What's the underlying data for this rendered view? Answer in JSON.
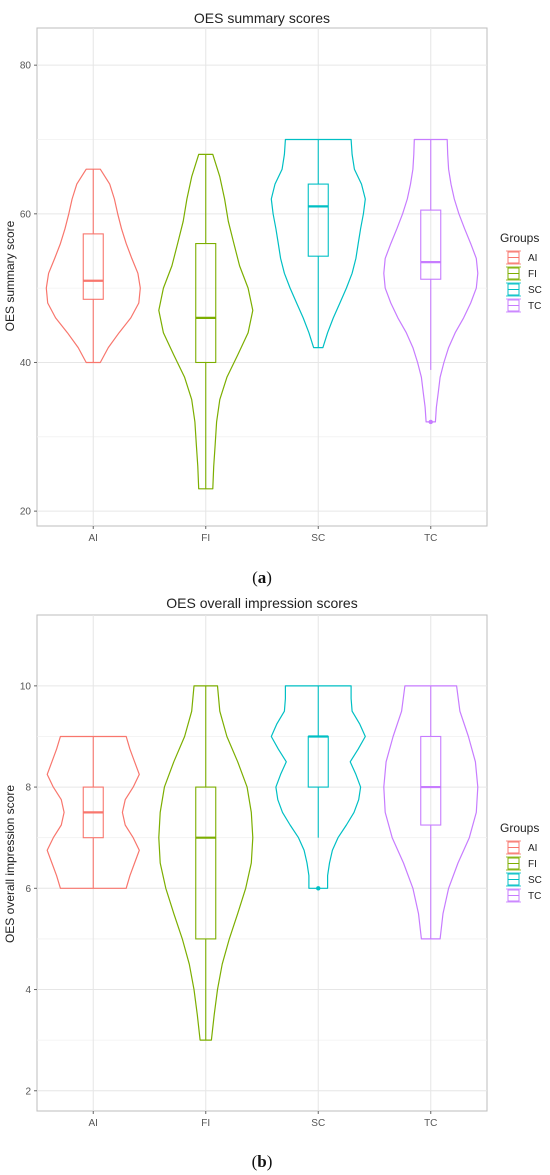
{
  "chart_data": [
    {
      "type": "violin",
      "title": "OES summary scores",
      "xlabel": "",
      "ylabel": "OES summary score",
      "ylim": [
        18,
        85
      ],
      "yticks": [
        20,
        40,
        60,
        80
      ],
      "categories": [
        "AI",
        "FI",
        "SC",
        "TC"
      ],
      "legend": {
        "title": "Groups",
        "position": "right",
        "entries": [
          "AI",
          "FI",
          "SC",
          "TC"
        ]
      },
      "grid": true,
      "caption": {
        "open": "(",
        "letter": "a",
        "close": ")"
      },
      "series": [
        {
          "name": "AI",
          "color": "#F8766D",
          "min": 40,
          "q1": 48.5,
          "median": 51,
          "q3": 57.3,
          "max": 66,
          "outliers": [],
          "density": [
            [
              40,
              0.15
            ],
            [
              42,
              0.32
            ],
            [
              44,
              0.55
            ],
            [
              46,
              0.8
            ],
            [
              48,
              0.97
            ],
            [
              50,
              1.0
            ],
            [
              52,
              0.95
            ],
            [
              54,
              0.82
            ],
            [
              56,
              0.7
            ],
            [
              58,
              0.6
            ],
            [
              60,
              0.52
            ],
            [
              62,
              0.45
            ],
            [
              64,
              0.35
            ],
            [
              66,
              0.15
            ]
          ]
        },
        {
          "name": "FI",
          "color": "#7CAE00",
          "min": 23,
          "q1": 40,
          "median": 46,
          "q3": 56,
          "max": 68,
          "outliers": [],
          "density": [
            [
              23,
              0.15
            ],
            [
              26,
              0.17
            ],
            [
              29,
              0.2
            ],
            [
              32,
              0.23
            ],
            [
              35,
              0.3
            ],
            [
              38,
              0.45
            ],
            [
              41,
              0.68
            ],
            [
              44,
              0.9
            ],
            [
              47,
              1.0
            ],
            [
              50,
              0.9
            ],
            [
              53,
              0.72
            ],
            [
              56,
              0.6
            ],
            [
              59,
              0.48
            ],
            [
              62,
              0.4
            ],
            [
              65,
              0.3
            ],
            [
              68,
              0.15
            ]
          ]
        },
        {
          "name": "SC",
          "color": "#00BFC4",
          "min": 42,
          "q1": 54.3,
          "median": 61,
          "q3": 64,
          "max": 70,
          "outliers": [],
          "density": [
            [
              42,
              0.1
            ],
            [
              44,
              0.2
            ],
            [
              46,
              0.32
            ],
            [
              48,
              0.46
            ],
            [
              50,
              0.6
            ],
            [
              52,
              0.72
            ],
            [
              54,
              0.8
            ],
            [
              56,
              0.85
            ],
            [
              58,
              0.9
            ],
            [
              60,
              0.96
            ],
            [
              62,
              1.0
            ],
            [
              64,
              0.92
            ],
            [
              66,
              0.77
            ],
            [
              68,
              0.72
            ],
            [
              70,
              0.7
            ]
          ]
        },
        {
          "name": "TC",
          "color": "#C77CFF",
          "min": 39,
          "q1": 51.2,
          "median": 53.5,
          "q3": 60.5,
          "max": 70,
          "outliers": [
            32
          ],
          "density": [
            [
              32,
              0.1
            ],
            [
              34,
              0.12
            ],
            [
              36,
              0.16
            ],
            [
              38,
              0.2
            ],
            [
              40,
              0.28
            ],
            [
              42,
              0.38
            ],
            [
              44,
              0.52
            ],
            [
              46,
              0.7
            ],
            [
              48,
              0.85
            ],
            [
              50,
              0.97
            ],
            [
              52,
              1.0
            ],
            [
              54,
              0.97
            ],
            [
              56,
              0.85
            ],
            [
              58,
              0.72
            ],
            [
              60,
              0.6
            ],
            [
              62,
              0.5
            ],
            [
              64,
              0.43
            ],
            [
              66,
              0.38
            ],
            [
              68,
              0.36
            ],
            [
              70,
              0.35
            ]
          ]
        }
      ]
    },
    {
      "type": "violin",
      "title": "OES overall impression scores",
      "xlabel": "",
      "ylabel": "OES overall impression score",
      "ylim": [
        1.6,
        11.4
      ],
      "yticks": [
        2,
        4,
        6,
        8,
        10
      ],
      "categories": [
        "AI",
        "FI",
        "SC",
        "TC"
      ],
      "legend": {
        "title": "Groups",
        "position": "right",
        "entries": [
          "AI",
          "FI",
          "SC",
          "TC"
        ]
      },
      "grid": true,
      "caption": {
        "open": "(",
        "letter": "b",
        "close": ")"
      },
      "series": [
        {
          "name": "AI",
          "color": "#F8766D",
          "min": 6,
          "q1": 7,
          "median": 7.5,
          "q3": 8,
          "max": 9,
          "outliers": [],
          "density": [
            [
              6,
              0.7
            ],
            [
              6.25,
              0.78
            ],
            [
              6.5,
              0.88
            ],
            [
              6.75,
              0.98
            ],
            [
              7,
              0.85
            ],
            [
              7.25,
              0.68
            ],
            [
              7.5,
              0.62
            ],
            [
              7.75,
              0.68
            ],
            [
              8,
              0.85
            ],
            [
              8.25,
              0.98
            ],
            [
              8.5,
              0.88
            ],
            [
              8.75,
              0.78
            ],
            [
              9,
              0.7
            ]
          ]
        },
        {
          "name": "FI",
          "color": "#7CAE00",
          "min": 3,
          "q1": 5,
          "median": 7,
          "q3": 8,
          "max": 10,
          "outliers": [],
          "density": [
            [
              3,
              0.12
            ],
            [
              3.5,
              0.18
            ],
            [
              4,
              0.25
            ],
            [
              4.5,
              0.35
            ],
            [
              5,
              0.5
            ],
            [
              5.5,
              0.68
            ],
            [
              6,
              0.85
            ],
            [
              6.5,
              0.97
            ],
            [
              7,
              1.0
            ],
            [
              7.5,
              0.97
            ],
            [
              8,
              0.88
            ],
            [
              8.5,
              0.68
            ],
            [
              9,
              0.45
            ],
            [
              9.5,
              0.3
            ],
            [
              10,
              0.25
            ]
          ]
        },
        {
          "name": "SC",
          "color": "#00BFC4",
          "min": 7,
          "q1": 8,
          "median": 9,
          "q3": 9,
          "max": 10,
          "outliers": [
            6
          ],
          "density": [
            [
              6,
              0.2
            ],
            [
              6.25,
              0.2
            ],
            [
              6.5,
              0.24
            ],
            [
              6.75,
              0.3
            ],
            [
              7,
              0.42
            ],
            [
              7.25,
              0.6
            ],
            [
              7.5,
              0.76
            ],
            [
              7.75,
              0.86
            ],
            [
              8,
              0.9
            ],
            [
              8.25,
              0.8
            ],
            [
              8.5,
              0.68
            ],
            [
              8.75,
              0.85
            ],
            [
              9,
              1.0
            ],
            [
              9.25,
              0.88
            ],
            [
              9.5,
              0.72
            ],
            [
              9.75,
              0.7
            ],
            [
              10,
              0.7
            ]
          ]
        },
        {
          "name": "TC",
          "color": "#C77CFF",
          "min": 5,
          "q1": 7.25,
          "median": 8,
          "q3": 9,
          "max": 10,
          "outliers": [],
          "density": [
            [
              5,
              0.2
            ],
            [
              5.5,
              0.26
            ],
            [
              6,
              0.38
            ],
            [
              6.5,
              0.58
            ],
            [
              7,
              0.82
            ],
            [
              7.5,
              0.97
            ],
            [
              8,
              1.0
            ],
            [
              8.5,
              0.95
            ],
            [
              9,
              0.8
            ],
            [
              9.5,
              0.62
            ],
            [
              10,
              0.55
            ]
          ]
        }
      ]
    }
  ]
}
